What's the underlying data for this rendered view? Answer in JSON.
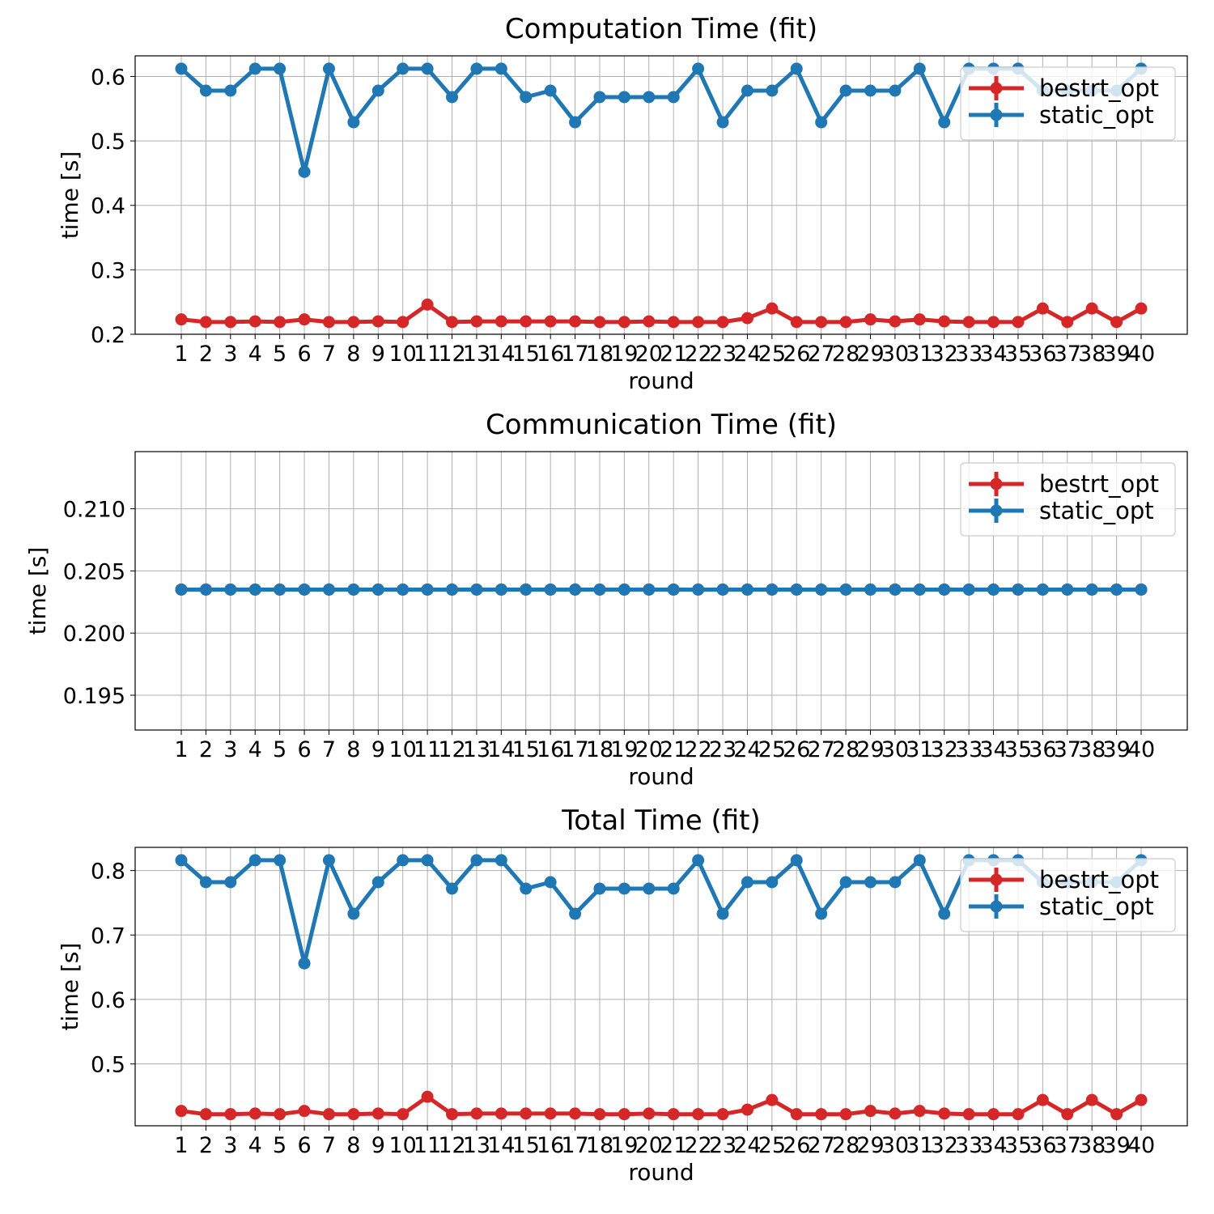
{
  "colors": {
    "bestrt_opt": "#d62728",
    "static_opt": "#1f77b4"
  },
  "chart_data": [
    {
      "type": "line",
      "title": "Computation Time (fit)",
      "xlabel": "round",
      "ylabel": "time [s]",
      "x": [
        1,
        2,
        3,
        4,
        5,
        6,
        7,
        8,
        9,
        10,
        11,
        12,
        13,
        14,
        15,
        16,
        17,
        18,
        19,
        20,
        21,
        22,
        23,
        24,
        25,
        26,
        27,
        28,
        29,
        30,
        31,
        32,
        33,
        34,
        35,
        36,
        37,
        38,
        39,
        40
      ],
      "ylim": [
        0.2,
        0.632
      ],
      "yticks": [
        0.2,
        0.3,
        0.4,
        0.5,
        0.6
      ],
      "ytick_labels": [
        "0.2",
        "0.3",
        "0.4",
        "0.5",
        "0.6"
      ],
      "grid": true,
      "legend": "upper right",
      "series": [
        {
          "name": "bestrt_opt",
          "values": [
            0.223,
            0.219,
            0.219,
            0.22,
            0.219,
            0.223,
            0.219,
            0.219,
            0.22,
            0.219,
            0.246,
            0.219,
            0.22,
            0.22,
            0.22,
            0.22,
            0.22,
            0.219,
            0.219,
            0.22,
            0.219,
            0.219,
            0.219,
            0.225,
            0.24,
            0.219,
            0.219,
            0.219,
            0.223,
            0.22,
            0.223,
            0.22,
            0.219,
            0.219,
            0.219,
            0.24,
            0.219,
            0.24,
            0.219,
            0.24
          ]
        },
        {
          "name": "static_opt",
          "values": [
            0.612,
            0.578,
            0.578,
            0.612,
            0.612,
            0.452,
            0.612,
            0.529,
            0.578,
            0.612,
            0.612,
            0.568,
            0.612,
            0.612,
            0.568,
            0.578,
            0.529,
            0.568,
            0.568,
            0.568,
            0.568,
            0.612,
            0.529,
            0.578,
            0.578,
            0.612,
            0.529,
            0.578,
            0.578,
            0.578,
            0.612,
            0.529,
            0.612,
            0.612,
            0.612,
            0.578,
            0.578,
            0.578,
            0.578,
            0.612
          ]
        }
      ]
    },
    {
      "type": "line",
      "title": "Communication Time (fit)",
      "xlabel": "round",
      "ylabel": "time [s]",
      "x": [
        1,
        2,
        3,
        4,
        5,
        6,
        7,
        8,
        9,
        10,
        11,
        12,
        13,
        14,
        15,
        16,
        17,
        18,
        19,
        20,
        21,
        22,
        23,
        24,
        25,
        26,
        27,
        28,
        29,
        30,
        31,
        32,
        33,
        34,
        35,
        36,
        37,
        38,
        39,
        40
      ],
      "ylim": [
        0.1922,
        0.2146
      ],
      "yticks": [
        0.195,
        0.2,
        0.205,
        0.21
      ],
      "ytick_labels": [
        "0.195",
        "0.200",
        "0.205",
        "0.210"
      ],
      "grid": true,
      "legend": "upper right",
      "series": [
        {
          "name": "bestrt_opt",
          "values": [
            0.2035,
            0.2035,
            0.2035,
            0.2035,
            0.2035,
            0.2035,
            0.2035,
            0.2035,
            0.2035,
            0.2035,
            0.2035,
            0.2035,
            0.2035,
            0.2035,
            0.2035,
            0.2035,
            0.2035,
            0.2035,
            0.2035,
            0.2035,
            0.2035,
            0.2035,
            0.2035,
            0.2035,
            0.2035,
            0.2035,
            0.2035,
            0.2035,
            0.2035,
            0.2035,
            0.2035,
            0.2035,
            0.2035,
            0.2035,
            0.2035,
            0.2035,
            0.2035,
            0.2035,
            0.2035,
            0.2035
          ]
        },
        {
          "name": "static_opt",
          "values": [
            0.2035,
            0.2035,
            0.2035,
            0.2035,
            0.2035,
            0.2035,
            0.2035,
            0.2035,
            0.2035,
            0.2035,
            0.2035,
            0.2035,
            0.2035,
            0.2035,
            0.2035,
            0.2035,
            0.2035,
            0.2035,
            0.2035,
            0.2035,
            0.2035,
            0.2035,
            0.2035,
            0.2035,
            0.2035,
            0.2035,
            0.2035,
            0.2035,
            0.2035,
            0.2035,
            0.2035,
            0.2035,
            0.2035,
            0.2035,
            0.2035,
            0.2035,
            0.2035,
            0.2035,
            0.2035,
            0.2035
          ]
        }
      ]
    },
    {
      "type": "line",
      "title": "Total Time (fit)",
      "xlabel": "round",
      "ylabel": "time [s]",
      "x": [
        1,
        2,
        3,
        4,
        5,
        6,
        7,
        8,
        9,
        10,
        11,
        12,
        13,
        14,
        15,
        16,
        17,
        18,
        19,
        20,
        21,
        22,
        23,
        24,
        25,
        26,
        27,
        28,
        29,
        30,
        31,
        32,
        33,
        34,
        35,
        36,
        37,
        38,
        39,
        40
      ],
      "ylim": [
        0.404,
        0.836
      ],
      "yticks": [
        0.5,
        0.6,
        0.7,
        0.8
      ],
      "ytick_labels": [
        "0.5",
        "0.6",
        "0.7",
        "0.8"
      ],
      "grid": true,
      "legend": "upper right",
      "series": [
        {
          "name": "bestrt_opt",
          "values": [
            0.427,
            0.422,
            0.422,
            0.423,
            0.422,
            0.427,
            0.422,
            0.422,
            0.423,
            0.422,
            0.449,
            0.422,
            0.423,
            0.423,
            0.423,
            0.423,
            0.423,
            0.422,
            0.422,
            0.423,
            0.422,
            0.422,
            0.422,
            0.429,
            0.444,
            0.422,
            0.422,
            0.422,
            0.427,
            0.423,
            0.427,
            0.423,
            0.422,
            0.422,
            0.422,
            0.444,
            0.422,
            0.444,
            0.422,
            0.444
          ]
        },
        {
          "name": "static_opt",
          "values": [
            0.816,
            0.782,
            0.782,
            0.816,
            0.816,
            0.656,
            0.816,
            0.733,
            0.782,
            0.816,
            0.816,
            0.772,
            0.816,
            0.816,
            0.772,
            0.782,
            0.733,
            0.772,
            0.772,
            0.772,
            0.772,
            0.816,
            0.733,
            0.782,
            0.782,
            0.816,
            0.733,
            0.782,
            0.782,
            0.782,
            0.816,
            0.733,
            0.816,
            0.816,
            0.816,
            0.782,
            0.782,
            0.782,
            0.782,
            0.816
          ]
        }
      ]
    }
  ]
}
